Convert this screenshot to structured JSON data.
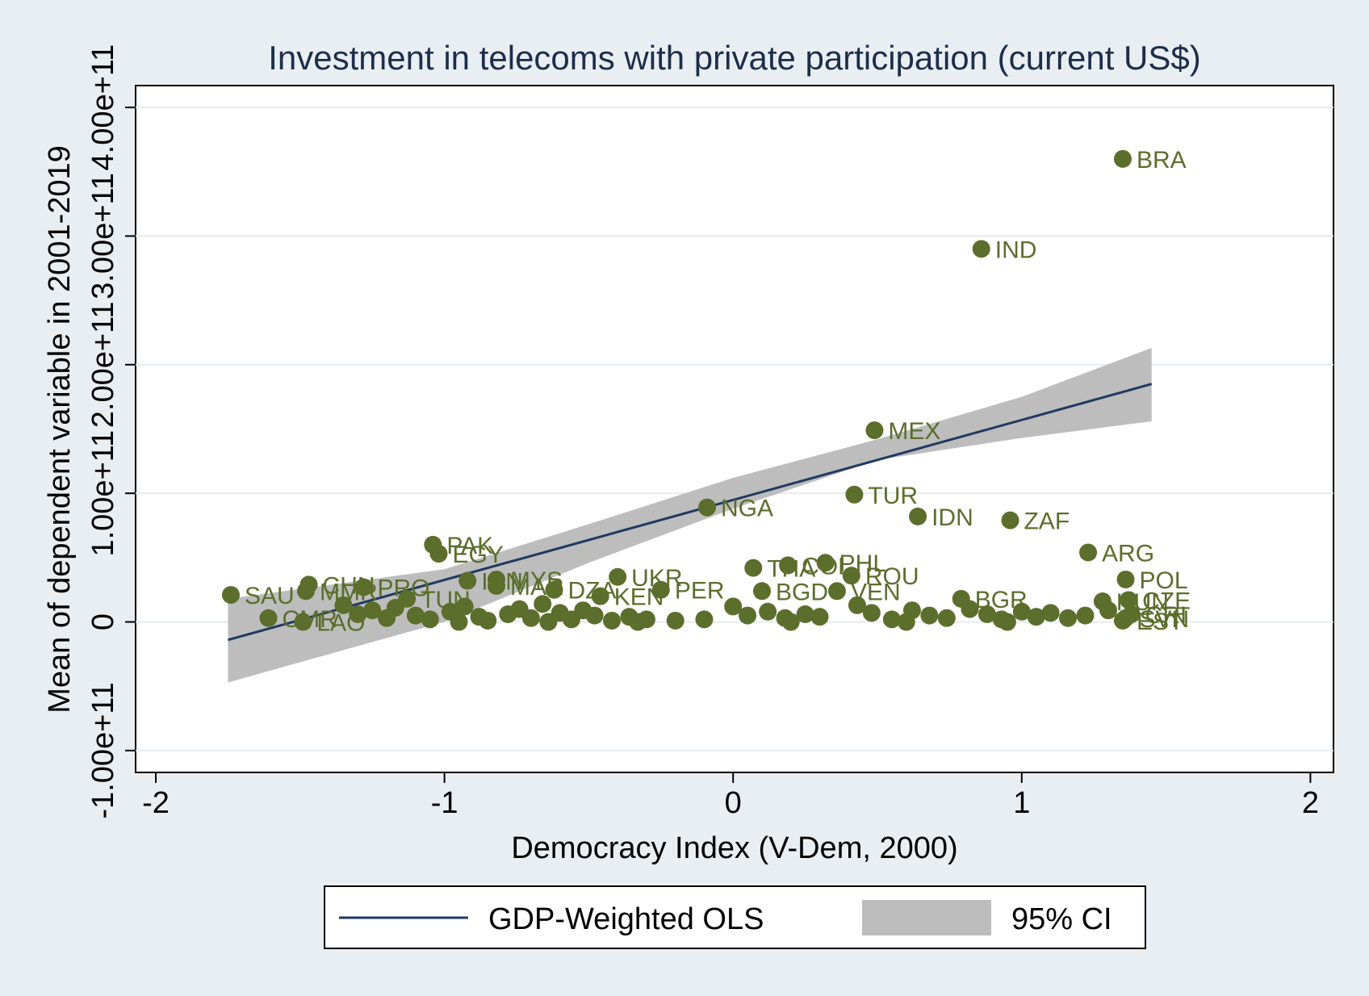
{
  "chart_data": {
    "type": "scatter",
    "title": "Investment in telecoms with private participation (current US$)",
    "xlabel": "Democracy Index (V-Dem, 2000)",
    "ylabel": "Mean of dependent variable in 2001-2019",
    "xlim": [
      -2.07,
      2.08
    ],
    "ylim": [
      -117000000000.0,
      417000000000.0
    ],
    "xticks": [
      -2,
      -1,
      0,
      1,
      2
    ],
    "xtick_labels": [
      "-2",
      "-1",
      "0",
      "1",
      "2"
    ],
    "yticks": [
      -100000000000.0,
      0,
      100000000000.0,
      200000000000.0,
      300000000000.0,
      400000000000.0
    ],
    "ytick_labels": [
      "-1.00e+11",
      "0",
      "1.00e+11",
      "2.00e+11",
      "3.00e+11",
      "4.00e+11"
    ],
    "grid": true,
    "legend_position": "bottom",
    "colors": {
      "points": "#5b6e2b",
      "fit_line": "#1f3a60",
      "ci_band": "#bdbdbd",
      "plot_bg": "#ffffff",
      "page_bg": "#e9eef2",
      "title": "#1c2e4a"
    },
    "fit": {
      "name": "GDP-Weighted OLS",
      "x0": -1.75,
      "y0": -14000000000.0,
      "x1": 1.45,
      "y1": 185000000000.0
    },
    "ci": {
      "name": "95% CI",
      "x": [
        -1.75,
        -1.0,
        -0.5,
        0.0,
        0.5,
        1.0,
        1.45
      ],
      "lower": [
        -47000000000.0,
        0.0,
        46000000000.0,
        88000000000.0,
        126000000000.0,
        143000000000.0,
        156000000000.0
      ],
      "upper": [
        18000000000.0,
        41000000000.0,
        76000000000.0,
        112000000000.0,
        142000000000.0,
        175000000000.0,
        213000000000.0
      ]
    },
    "points": [
      {
        "label": "BRA",
        "x": 1.35,
        "y": 360000000000.0
      },
      {
        "label": "IND",
        "x": 0.86,
        "y": 290000000000.0
      },
      {
        "label": "MEX",
        "x": 0.49,
        "y": 149000000000.0
      },
      {
        "label": "TUR",
        "x": 0.42,
        "y": 99000000000.0
      },
      {
        "label": "NGA",
        "x": -0.09,
        "y": 89000000000.0
      },
      {
        "label": "IDN",
        "x": 0.64,
        "y": 82000000000.0
      },
      {
        "label": "ZAF",
        "x": 0.96,
        "y": 79000000000.0
      },
      {
        "label": "PAK",
        "x": -1.04,
        "y": 60000000000.0
      },
      {
        "label": "EGY",
        "x": -1.02,
        "y": 53000000000.0
      },
      {
        "label": "ARG",
        "x": 1.23,
        "y": 54000000000.0
      },
      {
        "label": "PHL",
        "x": 0.32,
        "y": 46000000000.0
      },
      {
        "label": "COL",
        "x": 0.19,
        "y": 44000000000.0
      },
      {
        "label": "THA",
        "x": 0.07,
        "y": 42000000000.0
      },
      {
        "label": "ROU",
        "x": 0.41,
        "y": 36000000000.0
      },
      {
        "label": "UKR",
        "x": -0.4,
        "y": 35000000000.0
      },
      {
        "label": "POL",
        "x": 1.36,
        "y": 33000000000.0
      },
      {
        "label": "MYS",
        "x": -0.82,
        "y": 33000000000.0
      },
      {
        "label": "IRN",
        "x": -0.92,
        "y": 32000000000.0
      },
      {
        "label": "CHN",
        "x": -1.47,
        "y": 29000000000.0
      },
      {
        "label": "MAR",
        "x": -0.82,
        "y": 28000000000.0
      },
      {
        "label": "DZA",
        "x": -0.62,
        "y": 25000000000.0
      },
      {
        "label": "PER",
        "x": -0.25,
        "y": 25000000000.0
      },
      {
        "label": "BGD",
        "x": 0.1,
        "y": 24000000000.0
      },
      {
        "label": "VEN",
        "x": 0.36,
        "y": 24000000000.0
      },
      {
        "label": "KEN",
        "x": -0.46,
        "y": 20000000000.0
      },
      {
        "label": "SAU",
        "x": -1.74,
        "y": 21000000000.0
      },
      {
        "label": "MMR",
        "x": -1.48,
        "y": 24000000000.0
      },
      {
        "label": "PRO",
        "x": -1.28,
        "y": 27000000000.0
      },
      {
        "label": "TUN",
        "x": -1.13,
        "y": 18000000000.0
      },
      {
        "label": "BGR",
        "x": 0.79,
        "y": 18000000000.0
      },
      {
        "label": "HUN",
        "x": 1.28,
        "y": 16000000000.0
      },
      {
        "label": "CZE",
        "x": 1.37,
        "y": 17000000000.0
      },
      {
        "label": "CRI",
        "x": 1.38,
        "y": 6000000000.0
      },
      {
        "label": "SVN",
        "x": 1.36,
        "y": 3000000000.0
      },
      {
        "label": "EST",
        "x": 1.35,
        "y": 1000000000.0
      },
      {
        "label": "CMR",
        "x": -1.61,
        "y": 3000000000.0
      },
      {
        "label": "LAO",
        "x": -1.49,
        "y": 0.0
      }
    ],
    "cluster_points": [
      [
        -1.35,
        13000000000.0
      ],
      [
        -1.3,
        6000000000.0
      ],
      [
        -1.25,
        9000000000.0
      ],
      [
        -1.2,
        3000000000.0
      ],
      [
        -1.17,
        11000000000.0
      ],
      [
        -1.1,
        5000000000.0
      ],
      [
        -1.05,
        2000000000.0
      ],
      [
        -0.98,
        8000000000.0
      ],
      [
        -0.93,
        12000000000.0
      ],
      [
        -0.88,
        4000000000.0
      ],
      [
        -0.85,
        1000000000.0
      ],
      [
        -0.78,
        6000000000.0
      ],
      [
        -0.74,
        10000000000.0
      ],
      [
        -0.7,
        3000000000.0
      ],
      [
        -0.66,
        14000000000.0
      ],
      [
        -0.6,
        7000000000.0
      ],
      [
        -0.56,
        2000000000.0
      ],
      [
        -0.52,
        9000000000.0
      ],
      [
        -0.48,
        5000000000.0
      ],
      [
        -0.42,
        1000000000.0
      ],
      [
        -0.36,
        4000000000.0
      ],
      [
        -0.3,
        2000000000.0
      ],
      [
        -0.2,
        1000000000.0
      ],
      [
        -0.1,
        2000000000.0
      ],
      [
        0.0,
        12000000000.0
      ],
      [
        0.05,
        5000000000.0
      ],
      [
        0.12,
        8000000000.0
      ],
      [
        0.18,
        3000000000.0
      ],
      [
        0.25,
        6000000000.0
      ],
      [
        0.3,
        4000000000.0
      ],
      [
        0.43,
        13000000000.0
      ],
      [
        0.48,
        7000000000.0
      ],
      [
        0.55,
        2000000000.0
      ],
      [
        0.62,
        9000000000.0
      ],
      [
        0.68,
        5000000000.0
      ],
      [
        0.74,
        3000000000.0
      ],
      [
        0.82,
        10000000000.0
      ],
      [
        0.88,
        6000000000.0
      ],
      [
        0.93,
        2000000000.0
      ],
      [
        1.0,
        8000000000.0
      ],
      [
        1.05,
        4000000000.0
      ],
      [
        1.1,
        7000000000.0
      ],
      [
        1.16,
        3000000000.0
      ],
      [
        1.22,
        5000000000.0
      ],
      [
        1.3,
        9000000000.0
      ],
      [
        -0.95,
        0.0
      ],
      [
        -0.64,
        0.0
      ],
      [
        -0.33,
        0.0
      ],
      [
        0.2,
        0.0
      ],
      [
        0.6,
        0.0
      ],
      [
        0.95,
        0.0
      ]
    ]
  },
  "legend": {
    "line_label": "GDP-Weighted OLS",
    "ci_label": "95% CI"
  }
}
